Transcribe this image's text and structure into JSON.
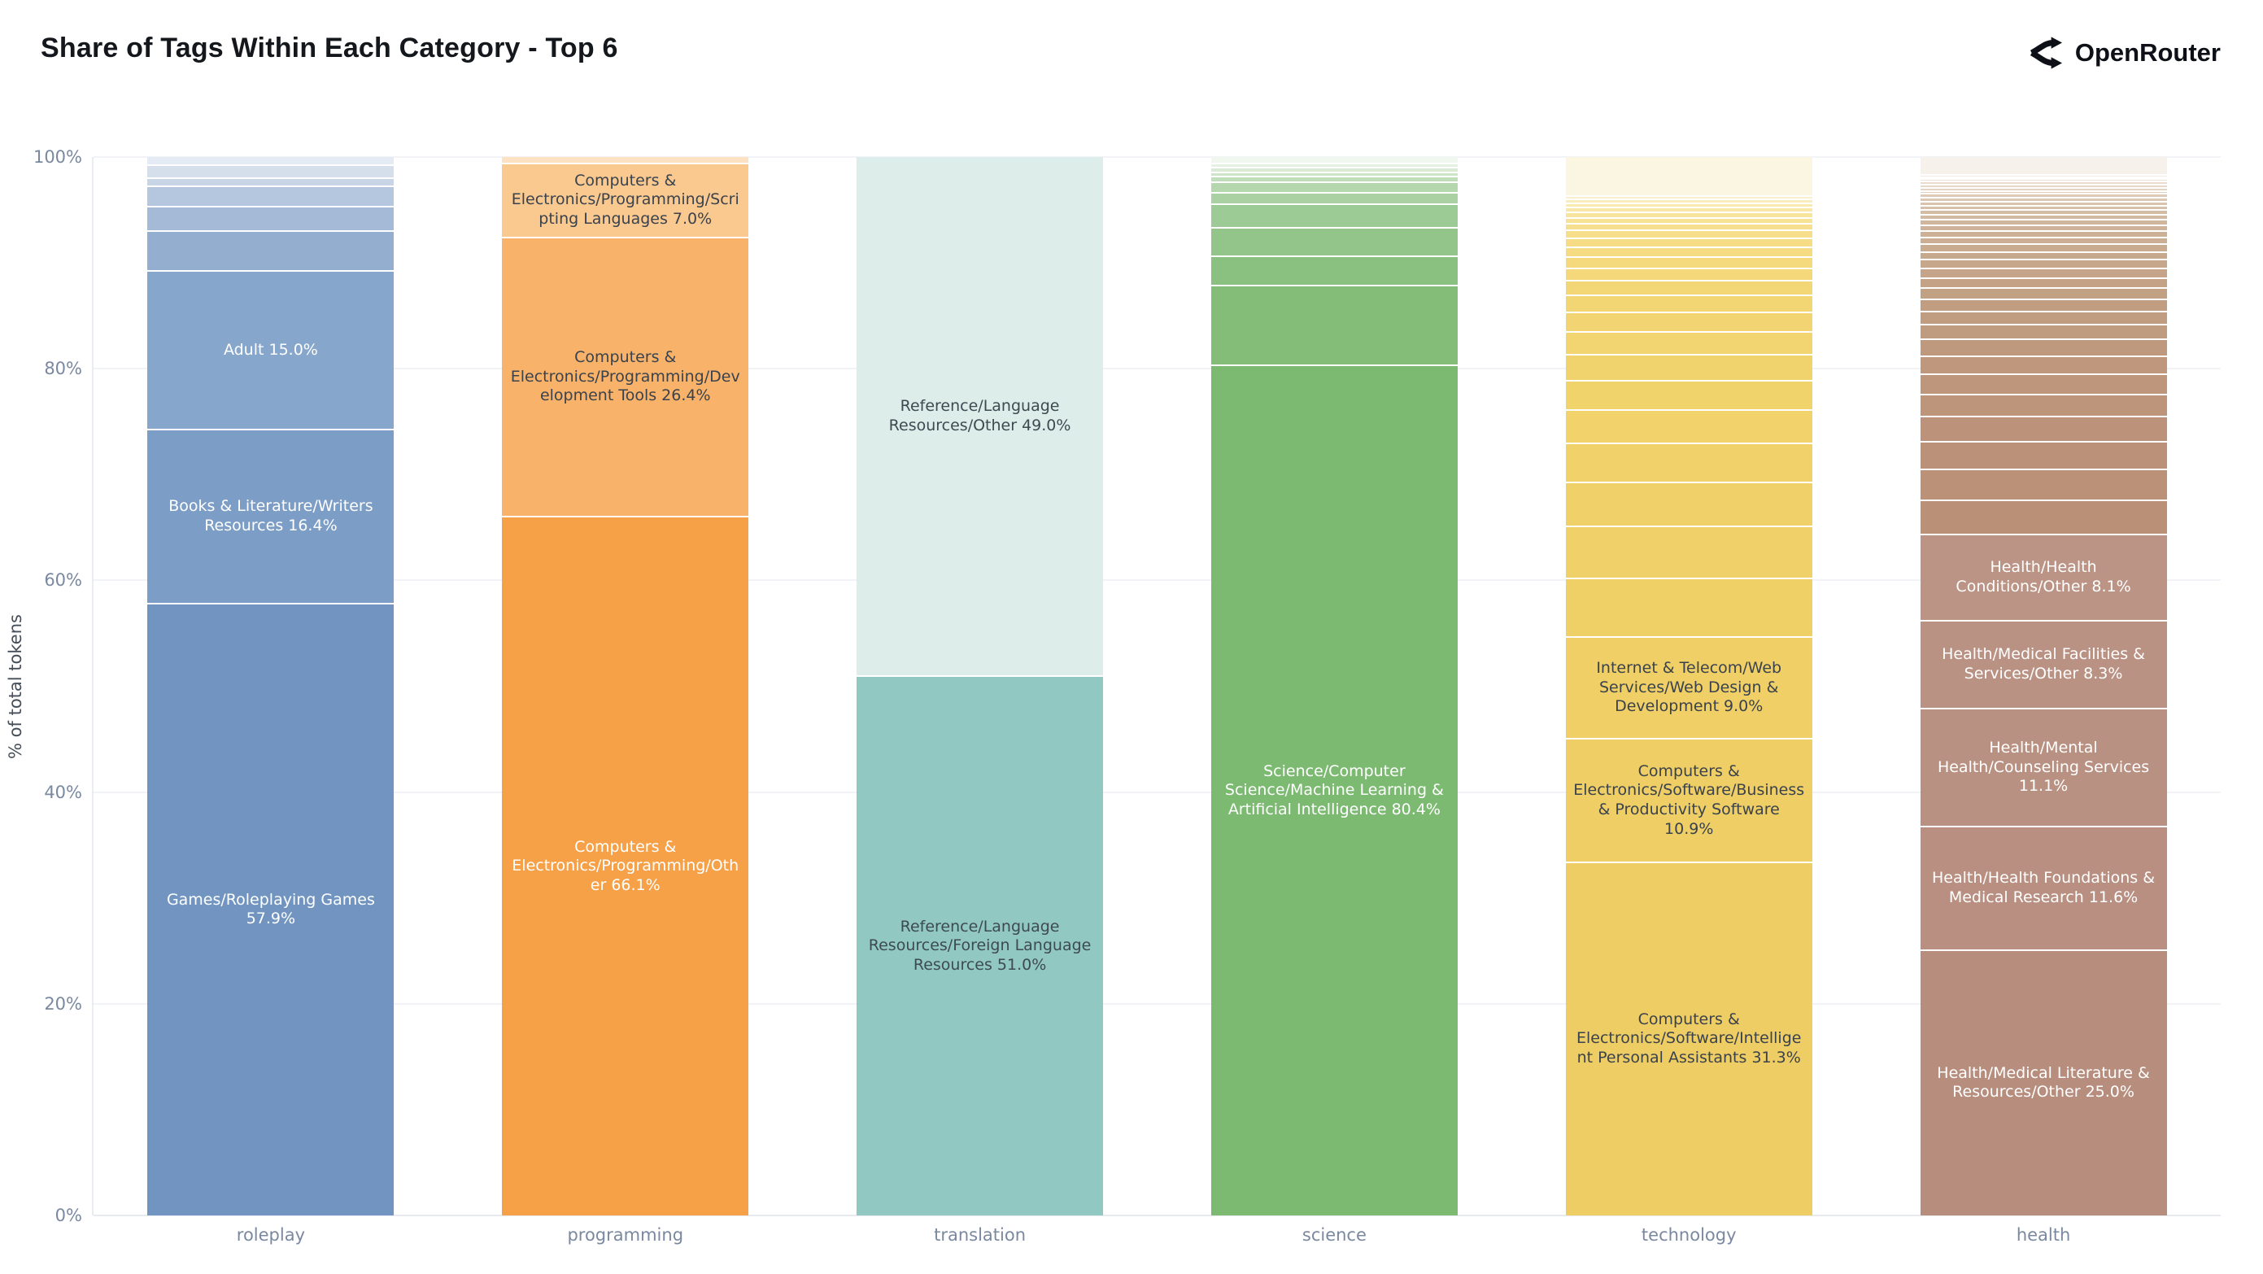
{
  "header": {
    "title": "Share of Tags Within Each Category - Top 6",
    "brand": "OpenRouter",
    "brand_icon": "openrouter-fork-icon",
    "title_color": "#14181d"
  },
  "y_axis": {
    "title": "% of total tokens",
    "ticks": [
      {
        "label": "100%",
        "value": 100
      },
      {
        "label": "80%",
        "value": 80
      },
      {
        "label": "60%",
        "value": 60
      },
      {
        "label": "40%",
        "value": 40
      },
      {
        "label": "20%",
        "value": 20
      },
      {
        "label": "0%",
        "value": 0
      }
    ]
  },
  "chart_data": {
    "type": "bar",
    "stacked": true,
    "orientation": "vertical",
    "grid": true,
    "legend": "none",
    "ylim": [
      0,
      100
    ],
    "ylabel": "% of total tokens",
    "xlabel": "",
    "title": "Share of Tags Within Each Category - Top 6",
    "categories": [
      "roleplay",
      "programming",
      "translation",
      "science",
      "technology",
      "health"
    ],
    "note": "Segments listed top-to-bottom; unlabeled segments are small unannotated tags estimated from pixels",
    "bars": [
      {
        "category": "roleplay",
        "segments": [
          {
            "label": "",
            "value": 0.7,
            "color": "#e4ebf4"
          },
          {
            "label": "",
            "value": 1.2,
            "color": "#d5dfec"
          },
          {
            "label": "",
            "value": 0.8,
            "color": "#c7d5e6"
          },
          {
            "label": "",
            "value": 1.9,
            "color": "#b5c7de"
          },
          {
            "label": "",
            "value": 2.3,
            "color": "#a4bad7"
          },
          {
            "label": "",
            "value": 3.8,
            "color": "#94aed0"
          },
          {
            "label": "Adult 15.0%",
            "value": 15.0,
            "color": "#87a6cc",
            "text_color": "#ffffff"
          },
          {
            "label": "Books & Literature/Writers Resources 16.4%",
            "value": 16.4,
            "color": "#7c9dc6",
            "text_color": "#ffffff"
          },
          {
            "label": "Games/Roleplaying Games 57.9%",
            "value": 57.9,
            "color": "#7195c0",
            "text_color": "#ffffff"
          }
        ]
      },
      {
        "category": "programming",
        "segments": [
          {
            "label": "",
            "value": 0.5,
            "color": "#fce2c2"
          },
          {
            "label": "Computers & Electronics/Programming/Scripting Languages 7.0%",
            "value": 7.0,
            "color": "#fac98f",
            "text_color": "#3a424d"
          },
          {
            "label": "Computers & Electronics/Programming/Development Tools 26.4%",
            "value": 26.4,
            "color": "#f8b269",
            "text_color": "#3a424d"
          },
          {
            "label": "Computers & Electronics/Programming/Other 66.1%",
            "value": 66.1,
            "color": "#f6a148",
            "text_color": "#ffffff"
          }
        ]
      },
      {
        "category": "translation",
        "segments": [
          {
            "label": "Reference/Language Resources/Other 49.0%",
            "value": 49.0,
            "color": "#dcedea",
            "text_color": "#3e4a52"
          },
          {
            "label": "Reference/Language Resources/Foreign Language Resources 51.0%",
            "value": 51.0,
            "color": "#91c8c1",
            "text_color": "#3e4a52"
          }
        ]
      },
      {
        "category": "science",
        "segments": [
          {
            "label": "",
            "value": 0.5,
            "color": "#f0f7ee"
          },
          {
            "label": "",
            "value": 0.4,
            "color": "#e5f1e2"
          },
          {
            "label": "",
            "value": 0.5,
            "color": "#d9ebd5"
          },
          {
            "label": "",
            "value": 0.4,
            "color": "#cde5c8"
          },
          {
            "label": "",
            "value": 0.5,
            "color": "#c1debb"
          },
          {
            "label": "",
            "value": 1.0,
            "color": "#b4d7ad"
          },
          {
            "label": "",
            "value": 1.1,
            "color": "#a9d1a1"
          },
          {
            "label": "",
            "value": 2.2,
            "color": "#9dcb95"
          },
          {
            "label": "",
            "value": 2.7,
            "color": "#93c58a"
          },
          {
            "label": "",
            "value": 2.8,
            "color": "#8ac080"
          },
          {
            "label": "",
            "value": 7.5,
            "color": "#83bd78"
          },
          {
            "label": "Science/Computer Science/Machine Learning & Artificial Intelligence 80.4%",
            "value": 80.4,
            "color": "#7cba72",
            "text_color": "#ffffff"
          }
        ]
      },
      {
        "category": "technology",
        "segments": [
          {
            "label": "",
            "value": 3.4,
            "color": "#fbf6e2"
          },
          {
            "label": "",
            "value": 0.3,
            "color": "#faf1cc"
          },
          {
            "label": "",
            "value": 0.3,
            "color": "#f9edbd"
          },
          {
            "label": "",
            "value": 0.4,
            "color": "#f9eab0"
          },
          {
            "label": "",
            "value": 0.4,
            "color": "#f8e7a6"
          },
          {
            "label": "",
            "value": 0.5,
            "color": "#f7e59d"
          },
          {
            "label": "",
            "value": 0.5,
            "color": "#f7e296"
          },
          {
            "label": "",
            "value": 0.6,
            "color": "#f6e090"
          },
          {
            "label": "",
            "value": 0.7,
            "color": "#f6de8a"
          },
          {
            "label": "",
            "value": 0.8,
            "color": "#f5dc85"
          },
          {
            "label": "",
            "value": 0.9,
            "color": "#f5db81"
          },
          {
            "label": "",
            "value": 1.0,
            "color": "#f4d97d"
          },
          {
            "label": "",
            "value": 1.1,
            "color": "#f4d87a"
          },
          {
            "label": "",
            "value": 1.3,
            "color": "#f3d777"
          },
          {
            "label": "",
            "value": 1.5,
            "color": "#f3d674"
          },
          {
            "label": "",
            "value": 1.7,
            "color": "#f2d572"
          },
          {
            "label": "",
            "value": 2.0,
            "color": "#f2d470"
          },
          {
            "label": "",
            "value": 2.3,
            "color": "#f1d36e"
          },
          {
            "label": "",
            "value": 2.6,
            "color": "#f1d36c"
          },
          {
            "label": "",
            "value": 3.0,
            "color": "#f1d26b"
          },
          {
            "label": "",
            "value": 3.4,
            "color": "#f0d16a"
          },
          {
            "label": "",
            "value": 3.9,
            "color": "#f0d169"
          },
          {
            "label": "",
            "value": 4.6,
            "color": "#f0d068"
          },
          {
            "label": "",
            "value": 5.2,
            "color": "#efd067"
          },
          {
            "label": "Internet & Telecom/Web Services/Web Design & Development 9.0%",
            "value": 9.0,
            "color": "#efcf66",
            "text_color": "#3a424d"
          },
          {
            "label": "Computers & Electronics/Software/Business & Productivity Software 10.9%",
            "value": 10.9,
            "color": "#efce65",
            "text_color": "#3a424d"
          },
          {
            "label": "Computers & Electronics/Software/Intelligent Personal Assistants 31.3%",
            "value": 31.3,
            "color": "#eecd64",
            "text_color": "#3a424d"
          }
        ]
      },
      {
        "category": "health",
        "segments": [
          {
            "label": "",
            "value": 1.6,
            "color": "#f6f1eb"
          },
          {
            "label": "",
            "value": 0.2,
            "color": "#f2ebe3"
          },
          {
            "label": "",
            "value": 0.2,
            "color": "#efe6dc"
          },
          {
            "label": "",
            "value": 0.25,
            "color": "#ece1d5"
          },
          {
            "label": "",
            "value": 0.25,
            "color": "#e9dcce"
          },
          {
            "label": "",
            "value": 0.3,
            "color": "#e6d7c8"
          },
          {
            "label": "",
            "value": 0.3,
            "color": "#e3d3c2"
          },
          {
            "label": "",
            "value": 0.3,
            "color": "#e0cfbc"
          },
          {
            "label": "",
            "value": 0.35,
            "color": "#decbb7"
          },
          {
            "label": "",
            "value": 0.35,
            "color": "#dbc7b2"
          },
          {
            "label": "",
            "value": 0.4,
            "color": "#d9c3ad"
          },
          {
            "label": "",
            "value": 0.4,
            "color": "#d6c0a9"
          },
          {
            "label": "",
            "value": 0.45,
            "color": "#d4bda5"
          },
          {
            "label": "",
            "value": 0.5,
            "color": "#d2b9a1"
          },
          {
            "label": "",
            "value": 0.5,
            "color": "#d0b69d"
          },
          {
            "label": "",
            "value": 0.55,
            "color": "#ceb39a"
          },
          {
            "label": "",
            "value": 0.6,
            "color": "#ccb196"
          },
          {
            "label": "",
            "value": 0.65,
            "color": "#cbae93"
          },
          {
            "label": "",
            "value": 0.7,
            "color": "#c9ab90"
          },
          {
            "label": "",
            "value": 0.75,
            "color": "#c7a98e"
          },
          {
            "label": "",
            "value": 0.8,
            "color": "#c6a78b"
          },
          {
            "label": "",
            "value": 0.9,
            "color": "#c5a489"
          },
          {
            "label": "",
            "value": 0.95,
            "color": "#c3a286"
          },
          {
            "label": "",
            "value": 1.05,
            "color": "#c2a084"
          },
          {
            "label": "",
            "value": 1.15,
            "color": "#c19e82"
          },
          {
            "label": "",
            "value": 1.25,
            "color": "#c09c81"
          },
          {
            "label": "",
            "value": 1.4,
            "color": "#bf9b7f"
          },
          {
            "label": "",
            "value": 1.55,
            "color": "#be997e"
          },
          {
            "label": "",
            "value": 1.7,
            "color": "#be977d"
          },
          {
            "label": "",
            "value": 1.9,
            "color": "#bd967c"
          },
          {
            "label": "",
            "value": 2.1,
            "color": "#bc957b"
          },
          {
            "label": "",
            "value": 2.35,
            "color": "#bc937a"
          },
          {
            "label": "",
            "value": 2.6,
            "color": "#bb9279"
          },
          {
            "label": "",
            "value": 2.9,
            "color": "#bb9178"
          },
          {
            "label": "",
            "value": 3.2,
            "color": "#ba9077"
          },
          {
            "label": "Health/Health Conditions/Other 8.1%",
            "value": 8.1,
            "color": "#bb9486",
            "text_color": "#ffffff"
          },
          {
            "label": "Health/Medical Facilities & Services/Other 8.3%",
            "value": 8.3,
            "color": "#ba9284",
            "text_color": "#ffffff"
          },
          {
            "label": "Health/Mental Health/Counseling Services 11.1%",
            "value": 11.1,
            "color": "#b99182",
            "text_color": "#ffffff"
          },
          {
            "label": "Health/Health Foundations & Medical Research 11.6%",
            "value": 11.6,
            "color": "#b88f80",
            "text_color": "#ffffff"
          },
          {
            "label": "Health/Medical Literature & Resources/Other 25.0%",
            "value": 25.0,
            "color": "#b78e7e",
            "text_color": "#ffffff"
          }
        ]
      }
    ]
  }
}
